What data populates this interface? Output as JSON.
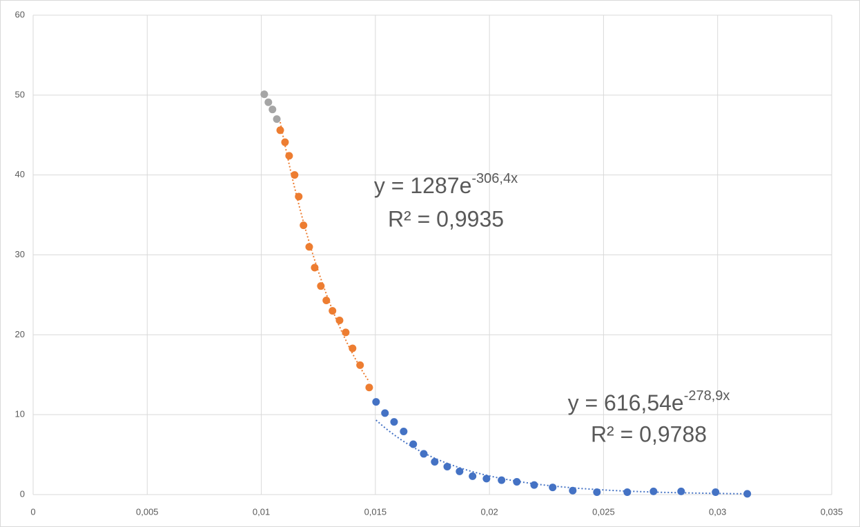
{
  "chart_data": {
    "type": "scatter",
    "xlim": [
      0,
      0.035
    ],
    "xticks": [
      0,
      {
        "value": 0.005,
        "label": "0,005"
      },
      {
        "value": 0.01,
        "label": "0,01"
      },
      {
        "value": 0.015,
        "label": "0,015"
      },
      {
        "value": 0.02,
        "label": "0,02"
      },
      {
        "value": 0.025,
        "label": "0,025"
      },
      {
        "value": 0.03,
        "label": "0,03"
      },
      {
        "value": 0.035,
        "label": "0,035"
      }
    ],
    "ylim": [
      0,
      60
    ],
    "yticks": [
      0,
      10,
      20,
      30,
      40,
      50,
      60
    ],
    "grid": true,
    "series": [
      {
        "color": "#a5a5a5",
        "x": [
          0.01013,
          0.01031,
          0.01049,
          0.01068
        ],
        "y": [
          50.1,
          49.1,
          48.2,
          47.0
        ]
      },
      {
        "color": "#ed7d31",
        "x": [
          0.01083,
          0.01104,
          0.01122,
          0.01146,
          0.01164,
          0.01185,
          0.0121,
          0.01234,
          0.01261,
          0.01285,
          0.01312,
          0.01343,
          0.0137,
          0.014,
          0.01433,
          0.01473
        ],
        "y": [
          45.6,
          44.1,
          42.4,
          40.0,
          37.3,
          33.7,
          31.0,
          28.4,
          26.1,
          24.3,
          23.0,
          21.8,
          20.3,
          18.3,
          16.2,
          13.4
        ],
        "trendline": {
          "a": 1287,
          "b": -306.4,
          "equation": "y = 1287e",
          "exponent": "-306,4x",
          "r_squared": "R² = 0,9935"
        }
      },
      {
        "color": "#4472c4",
        "x": [
          0.01503,
          0.01542,
          0.01582,
          0.01624,
          0.01666,
          0.01712,
          0.0176,
          0.01815,
          0.01869,
          0.01926,
          0.01987,
          0.02053,
          0.0212,
          0.02196,
          0.02277,
          0.02365,
          0.02471,
          0.02604,
          0.02719,
          0.0284,
          0.02991,
          0.0313
        ],
        "y": [
          11.6,
          10.2,
          9.1,
          7.9,
          6.3,
          5.1,
          4.1,
          3.5,
          2.9,
          2.3,
          2.0,
          1.8,
          1.6,
          1.2,
          0.9,
          0.5,
          0.3,
          0.3,
          0.4,
          0.4,
          0.3,
          0.1
        ],
        "trendline": {
          "a": 616.54,
          "b": -278.9,
          "equation": "y = 616,54e",
          "exponent": "-278,9x",
          "r_squared": "R² = 0,9788"
        }
      }
    ]
  }
}
